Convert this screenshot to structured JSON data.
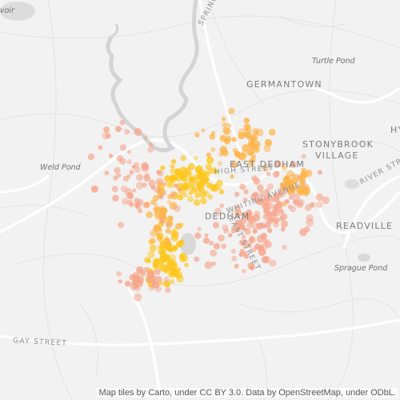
{
  "map": {
    "place_labels": [
      {
        "id": "germantown",
        "text": "GERMANTOWN"
      },
      {
        "id": "east-dedham",
        "text": "EAST DEDHAM"
      },
      {
        "id": "stonybrook-1",
        "text": "STONYBROOK"
      },
      {
        "id": "stonybrook-2",
        "text": "VILLAGE"
      },
      {
        "id": "dedham",
        "text": "DEDHAM"
      },
      {
        "id": "readville",
        "text": "READVILLE"
      },
      {
        "id": "hyde-park",
        "text": "HY"
      }
    ],
    "water_labels": [
      {
        "id": "turtle-pond",
        "text": "Turtle Pond"
      },
      {
        "id": "weld-pond",
        "text": "Weld Pond"
      },
      {
        "id": "sprague-pond",
        "text": "Sprague Pond"
      },
      {
        "id": "reservoir",
        "text": "voir"
      }
    ],
    "street_labels": [
      {
        "id": "high-street",
        "text": "HIGH STREET"
      },
      {
        "id": "whiting-avenue",
        "text": "WHITING AVENUE"
      },
      {
        "id": "east-street",
        "text": "EAST STREET"
      },
      {
        "id": "gay-street",
        "text": "GAY STREET"
      },
      {
        "id": "river-street",
        "text": "RIVER STREET"
      },
      {
        "id": "spring-street",
        "text": "SPRING"
      }
    ],
    "colors": {
      "background": "#f2f2f2",
      "water": "#d6d6d6",
      "road_major": "#ffffff",
      "road_minor": "#e3e3e3",
      "heat_low": "#f7a48a",
      "heat_mid": "#ffb347",
      "heat_high": "#ffc61a"
    }
  },
  "attribution": "Map tiles by Carto, under CC BY 3.0. Data by OpenStreetMap, under ODbL."
}
